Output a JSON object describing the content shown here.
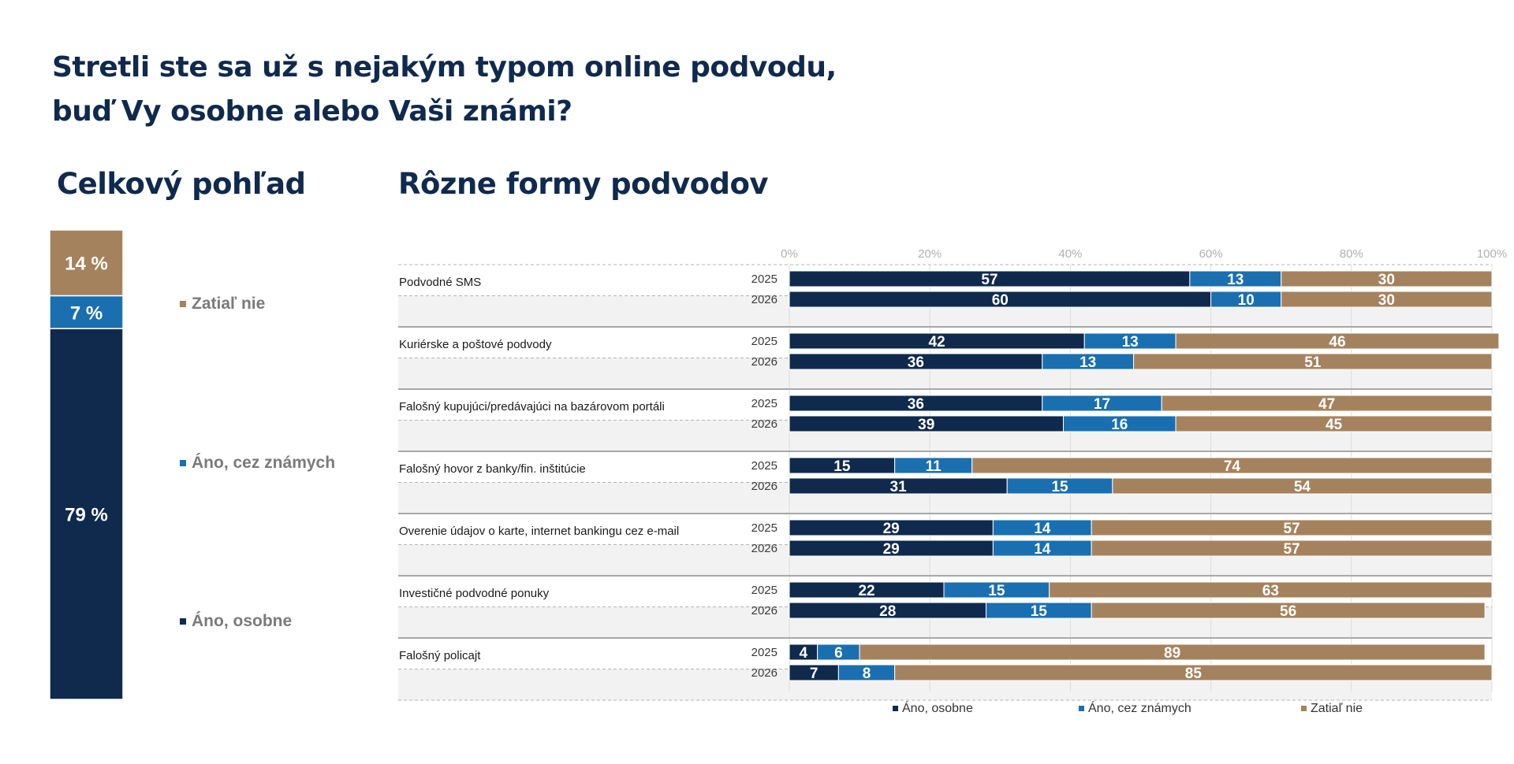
{
  "title_lines": [
    "Stretli ste sa už s nejakým typom online podvodu,",
    "buď Vy osobne alebo Vaši známi?"
  ],
  "colors": {
    "osobne": "#0f2a4d",
    "znamych": "#1a6fb0",
    "nie": "#a5825e",
    "title": "#0f2a4d"
  },
  "chart_data": [
    {
      "type": "bar",
      "stacked": true,
      "title": "Celkový pohľad",
      "categories": [
        "Celkom"
      ],
      "series": [
        {
          "name": "Áno, osobne",
          "values": [
            79
          ],
          "label": "79 %"
        },
        {
          "name": "Áno, cez známych",
          "values": [
            7
          ],
          "label": "7 %"
        },
        {
          "name": "Zatiaľ nie",
          "values": [
            14
          ],
          "label": "14 %"
        }
      ],
      "legend_order": [
        "Zatiaľ nie",
        "Áno, cez známych",
        "Áno, osobne"
      ],
      "legend_placement": "right"
    },
    {
      "type": "bar",
      "orientation": "horizontal",
      "stacked": true,
      "title": "Rôzne formy podvodov",
      "xlim": [
        0,
        100
      ],
      "ticks": [
        "0%",
        "20%",
        "40%",
        "60%",
        "80%",
        "100%"
      ],
      "grid": true,
      "legend_placement": "bottom",
      "years": [
        "2025",
        "2026"
      ],
      "categories": [
        "Podvodné  SMS",
        "Kuriérske a poštové  podvody",
        "Falošný  kupujúci/predávajúci  na bazárovom  portáli",
        "Falošný  hovor  z banky/fin. inštitúcie",
        "Overenie  údajov  o karte, internet bankingu cez e-mail",
        "Investičné  podvodné  ponuky",
        "Falošný  policajt"
      ],
      "series": [
        {
          "name": "Áno, osobne",
          "values": [
            [
              57,
              60
            ],
            [
              42,
              36
            ],
            [
              36,
              39
            ],
            [
              15,
              31
            ],
            [
              29,
              29
            ],
            [
              22,
              28
            ],
            [
              4,
              7
            ]
          ]
        },
        {
          "name": "Áno, cez známych",
          "values": [
            [
              13,
              10
            ],
            [
              13,
              13
            ],
            [
              17,
              16
            ],
            [
              11,
              15
            ],
            [
              14,
              14
            ],
            [
              15,
              15
            ],
            [
              6,
              8
            ]
          ]
        },
        {
          "name": "Zatiaľ nie",
          "values": [
            [
              30,
              30
            ],
            [
              46,
              51
            ],
            [
              47,
              45
            ],
            [
              74,
              54
            ],
            [
              57,
              57
            ],
            [
              63,
              56
            ],
            [
              89,
              85
            ]
          ]
        }
      ]
    }
  ]
}
